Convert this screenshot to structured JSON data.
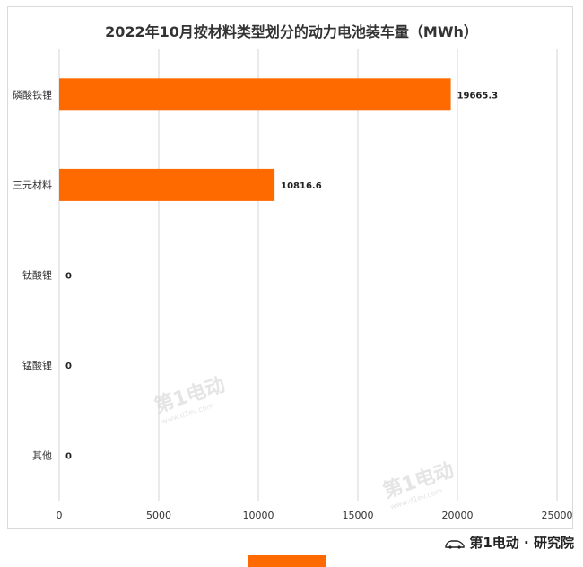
{
  "chart_data": {
    "type": "bar",
    "orientation": "horizontal",
    "title": "2022年10月按材料类型划分的动力电池装车量（MWh）",
    "categories": [
      "磷酸铁锂",
      "三元材料",
      "钛酸锂",
      "锰酸锂",
      "其他"
    ],
    "values": [
      19665.3,
      10816.6,
      0,
      0,
      0
    ],
    "value_labels": [
      "19665.3",
      "10816.6",
      "0",
      "0",
      "0"
    ],
    "xlim": [
      0,
      25000
    ],
    "xticks": [
      0,
      5000,
      10000,
      15000,
      20000,
      25000
    ],
    "xtick_labels": [
      "0",
      "5000",
      "10000",
      "15000",
      "20000",
      "25000"
    ],
    "grid": "vertical",
    "legend": "none",
    "bar_color": "#ff6a00"
  },
  "watermark": {
    "text": "第1电动",
    "subtext": "www.d1ev.com"
  },
  "brand": {
    "logo_text": "第1电动",
    "separator": "·",
    "suffix": "研究院"
  }
}
